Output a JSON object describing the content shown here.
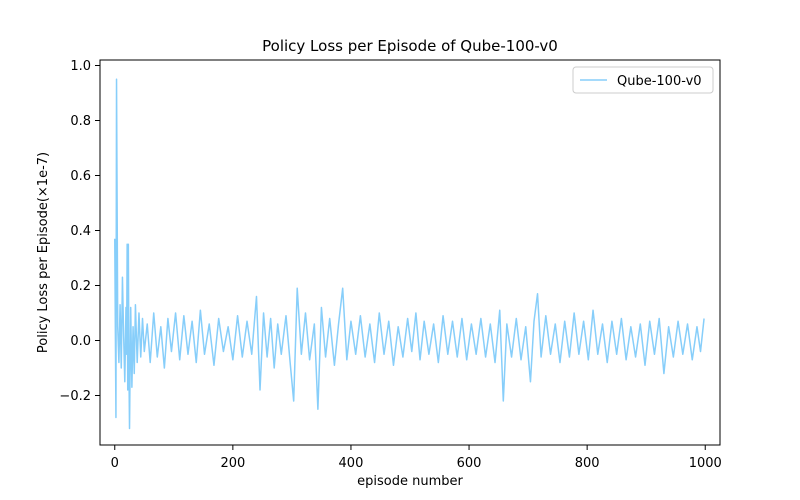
{
  "chart_data": {
    "type": "line",
    "title": "Policy Loss per Episode of Qube-100-v0",
    "xlabel": "episode number",
    "ylabel": "Policy Loss per Episode(×1e-7)",
    "xlim": [
      -25,
      1025
    ],
    "ylim": [
      -0.38,
      1.02
    ],
    "xticks": [
      0,
      200,
      400,
      600,
      800,
      1000
    ],
    "xtick_labels": [
      "0",
      "200",
      "400",
      "600",
      "800",
      "1000"
    ],
    "yticks": [
      -0.2,
      0.0,
      0.2,
      0.4,
      0.6,
      0.8,
      1.0
    ],
    "ytick_labels": [
      "−0.2",
      "0.0",
      "0.2",
      "0.4",
      "0.6",
      "0.8",
      "1.0"
    ],
    "grid": false,
    "legend_position": "top-right",
    "color": "#87CEFA",
    "series": [
      {
        "name": "Qube-100-v0",
        "points": [
          [
            0,
            0.37
          ],
          [
            2,
            -0.28
          ],
          [
            3,
            0.95
          ],
          [
            5,
            0.05
          ],
          [
            7,
            -0.08
          ],
          [
            9,
            0.13
          ],
          [
            11,
            -0.1
          ],
          [
            13,
            0.23
          ],
          [
            15,
            0.02
          ],
          [
            17,
            -0.15
          ],
          [
            19,
            0.12
          ],
          [
            20,
            -0.05
          ],
          [
            21,
            0.35
          ],
          [
            22,
            -0.18
          ],
          [
            23,
            0.35
          ],
          [
            24,
            -0.1
          ],
          [
            25,
            -0.32
          ],
          [
            27,
            0.12
          ],
          [
            29,
            -0.17
          ],
          [
            31,
            0.05
          ],
          [
            33,
            -0.12
          ],
          [
            35,
            0.13
          ],
          [
            38,
            -0.08
          ],
          [
            41,
            0.1
          ],
          [
            44,
            -0.06
          ],
          [
            47,
            0.08
          ],
          [
            50,
            -0.04
          ],
          [
            55,
            0.06
          ],
          [
            60,
            -0.08
          ],
          [
            66,
            0.1
          ],
          [
            72,
            -0.06
          ],
          [
            78,
            0.05
          ],
          [
            84,
            -0.1
          ],
          [
            90,
            0.08
          ],
          [
            96,
            -0.04
          ],
          [
            103,
            0.1
          ],
          [
            110,
            -0.07
          ],
          [
            117,
            0.09
          ],
          [
            124,
            -0.05
          ],
          [
            131,
            0.07
          ],
          [
            138,
            -0.08
          ],
          [
            145,
            0.11
          ],
          [
            152,
            -0.05
          ],
          [
            160,
            0.06
          ],
          [
            168,
            -0.09
          ],
          [
            176,
            0.08
          ],
          [
            184,
            -0.04
          ],
          [
            192,
            0.05
          ],
          [
            200,
            -0.07
          ],
          [
            208,
            0.09
          ],
          [
            216,
            -0.06
          ],
          [
            224,
            0.07
          ],
          [
            232,
            -0.05
          ],
          [
            240,
            0.16
          ],
          [
            246,
            -0.18
          ],
          [
            252,
            0.1
          ],
          [
            258,
            -0.06
          ],
          [
            264,
            0.08
          ],
          [
            270,
            -0.1
          ],
          [
            276,
            0.06
          ],
          [
            282,
            -0.05
          ],
          [
            290,
            0.09
          ],
          [
            297,
            -0.08
          ],
          [
            303,
            -0.22
          ],
          [
            309,
            0.19
          ],
          [
            316,
            -0.05
          ],
          [
            323,
            0.1
          ],
          [
            330,
            -0.07
          ],
          [
            338,
            0.06
          ],
          [
            344,
            -0.25
          ],
          [
            350,
            0.12
          ],
          [
            357,
            -0.06
          ],
          [
            364,
            0.08
          ],
          [
            372,
            -0.09
          ],
          [
            379,
            0.06
          ],
          [
            386,
            0.19
          ],
          [
            393,
            -0.07
          ],
          [
            400,
            0.07
          ],
          [
            408,
            -0.05
          ],
          [
            416,
            0.09
          ],
          [
            424,
            -0.06
          ],
          [
            432,
            0.06
          ],
          [
            440,
            -0.08
          ],
          [
            448,
            0.1
          ],
          [
            456,
            -0.05
          ],
          [
            464,
            0.07
          ],
          [
            472,
            -0.09
          ],
          [
            480,
            0.05
          ],
          [
            488,
            -0.06
          ],
          [
            496,
            0.08
          ],
          [
            503,
            -0.04
          ],
          [
            510,
            0.1
          ],
          [
            517,
            -0.07
          ],
          [
            524,
            0.07
          ],
          [
            532,
            -0.05
          ],
          [
            540,
            0.06
          ],
          [
            548,
            -0.08
          ],
          [
            556,
            0.09
          ],
          [
            564,
            -0.05
          ],
          [
            572,
            0.07
          ],
          [
            580,
            -0.06
          ],
          [
            588,
            0.08
          ],
          [
            596,
            -0.07
          ],
          [
            604,
            0.06
          ],
          [
            612,
            -0.05
          ],
          [
            620,
            0.08
          ],
          [
            628,
            -0.06
          ],
          [
            636,
            0.06
          ],
          [
            644,
            -0.08
          ],
          [
            652,
            0.11
          ],
          [
            658,
            -0.22
          ],
          [
            664,
            0.06
          ],
          [
            672,
            -0.06
          ],
          [
            680,
            0.08
          ],
          [
            688,
            -0.07
          ],
          [
            696,
            0.05
          ],
          [
            704,
            -0.15
          ],
          [
            710,
            0.07
          ],
          [
            716,
            0.17
          ],
          [
            722,
            -0.06
          ],
          [
            730,
            0.09
          ],
          [
            738,
            -0.05
          ],
          [
            746,
            0.06
          ],
          [
            754,
            -0.08
          ],
          [
            762,
            0.07
          ],
          [
            770,
            -0.06
          ],
          [
            778,
            0.1
          ],
          [
            786,
            -0.05
          ],
          [
            794,
            0.07
          ],
          [
            802,
            -0.07
          ],
          [
            810,
            0.11
          ],
          [
            818,
            -0.05
          ],
          [
            826,
            0.06
          ],
          [
            834,
            -0.08
          ],
          [
            842,
            0.07
          ],
          [
            850,
            -0.05
          ],
          [
            858,
            0.08
          ],
          [
            866,
            -0.07
          ],
          [
            874,
            0.05
          ],
          [
            882,
            -0.06
          ],
          [
            890,
            0.06
          ],
          [
            898,
            -0.09
          ],
          [
            906,
            0.07
          ],
          [
            914,
            -0.05
          ],
          [
            922,
            0.08
          ],
          [
            930,
            -0.12
          ],
          [
            938,
            0.05
          ],
          [
            946,
            -0.06
          ],
          [
            954,
            0.07
          ],
          [
            962,
            -0.05
          ],
          [
            970,
            0.06
          ],
          [
            978,
            -0.07
          ],
          [
            986,
            0.05
          ],
          [
            992,
            -0.04
          ],
          [
            998,
            0.08
          ]
        ]
      }
    ]
  }
}
